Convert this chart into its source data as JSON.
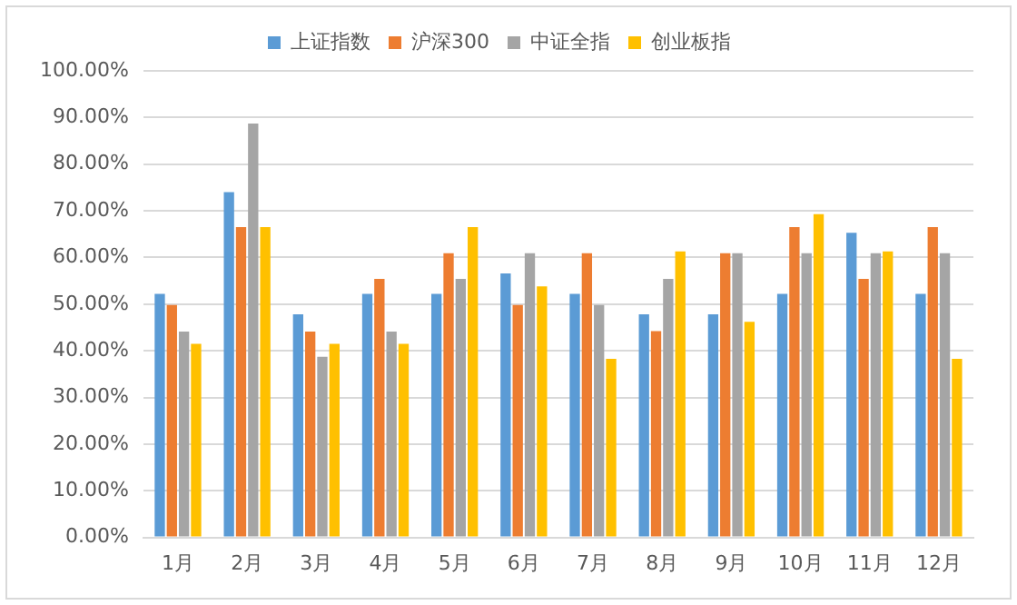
{
  "chart_data": {
    "type": "bar",
    "categories": [
      "1月",
      "2月",
      "3月",
      "4月",
      "5月",
      "6月",
      "7月",
      "8月",
      "9月",
      "10月",
      "11月",
      "12月"
    ],
    "series": [
      {
        "name": "上证指数",
        "color": "#5b9bd5",
        "values": [
          52.2,
          74.0,
          47.8,
          52.2,
          52.2,
          56.6,
          52.2,
          47.8,
          47.8,
          52.2,
          65.3,
          52.2
        ]
      },
      {
        "name": "沪深300",
        "color": "#ed7d31",
        "values": [
          49.8,
          66.5,
          44.1,
          55.4,
          60.9,
          49.8,
          60.9,
          44.2,
          60.9,
          66.5,
          55.4,
          66.5
        ]
      },
      {
        "name": "中证全指",
        "color": "#a5a5a5",
        "values": [
          44.1,
          88.7,
          38.7,
          44.1,
          55.4,
          60.9,
          49.8,
          55.4,
          60.9,
          60.9,
          60.9,
          60.9
        ]
      },
      {
        "name": "创业板指",
        "color": "#ffc000",
        "values": [
          41.5,
          66.5,
          41.5,
          41.5,
          66.5,
          53.8,
          38.3,
          61.3,
          46.2,
          69.3,
          61.3,
          38.3
        ]
      }
    ],
    "ylim": [
      0,
      100
    ],
    "yticks": [
      {
        "value": 0,
        "label": "0.00%"
      },
      {
        "value": 10,
        "label": "10.00%"
      },
      {
        "value": 20,
        "label": "20.00%"
      },
      {
        "value": 30,
        "label": "30.00%"
      },
      {
        "value": 40,
        "label": "40.00%"
      },
      {
        "value": 50,
        "label": "50.00%"
      },
      {
        "value": 60,
        "label": "60.00%"
      },
      {
        "value": 70,
        "label": "70.00%"
      },
      {
        "value": 80,
        "label": "80.00%"
      },
      {
        "value": 90,
        "label": "90.00%"
      },
      {
        "value": 100,
        "label": "100.00%"
      }
    ],
    "grid": "y",
    "legend": "top"
  }
}
